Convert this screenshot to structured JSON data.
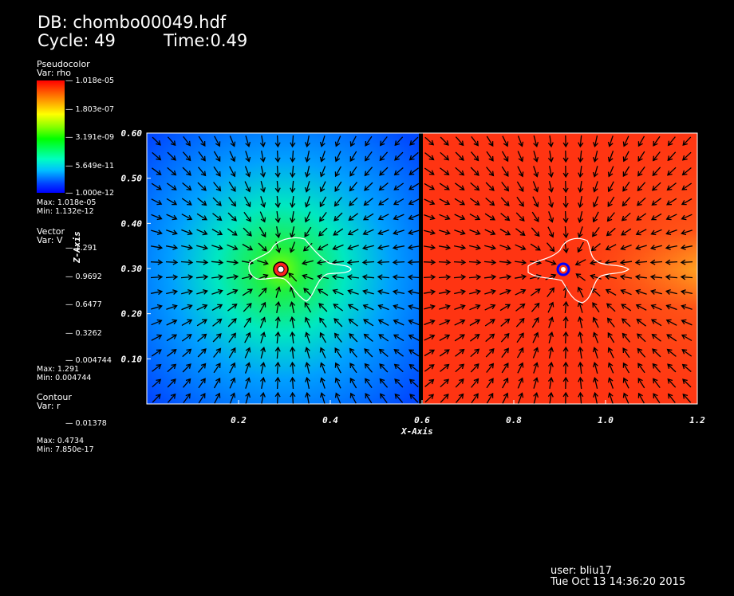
{
  "header": {
    "db": "DB: chombo00049.hdf",
    "cycle": "Cycle: 49",
    "time": "Time:0.49"
  },
  "pseudocolor": {
    "title": "Pseudocolor",
    "var": "Var: rho",
    "labels": [
      "1.018e-05",
      "1.803e-07",
      "3.191e-09",
      "5.649e-11",
      "1.000e-12"
    ],
    "max": "Max:  1.018e-05",
    "min": "Min:  1.132e-12"
  },
  "vector": {
    "title": "Vector",
    "var": "Var: V",
    "labels": [
      "1.291",
      "0.9692",
      "0.6477",
      "0.3262",
      "0.004744"
    ],
    "max": "Max:  1.291",
    "min": "Min:  0.004744"
  },
  "contour": {
    "title": "Contour",
    "var": "Var: r",
    "labels": [
      "0.01378"
    ],
    "max": "Max:  0.4734",
    "min": "Min:  7.850e-17"
  },
  "plot": {
    "x_axis_label": "X-Axis",
    "z_axis_label": "Z-Axis",
    "x_ticks": [
      "0.2",
      "0.4",
      "0.6",
      "0.8",
      "1.0",
      "1.2"
    ],
    "z_ticks": [
      "0.60",
      "0.50",
      "0.40",
      "0.30",
      "0.20",
      "0.10"
    ],
    "x_tick_values": [
      0.2,
      0.4,
      0.6,
      0.8,
      1.0,
      1.2
    ],
    "z_tick_values": [
      0.6,
      0.5,
      0.4,
      0.3,
      0.2,
      0.1
    ],
    "x_range": [
      0.0,
      1.2
    ],
    "z_range": [
      0.0,
      0.6
    ],
    "split_x": 0.6,
    "left_blob": {
      "cx": 0.3,
      "cz": 0.3
    },
    "right_blob": {
      "cx": 0.92,
      "cz": 0.3
    },
    "colors": {
      "left_base": "#0048ff",
      "right_base": "#ff3010",
      "contour": "#ffffff"
    }
  },
  "footer": {
    "user": "user: bliu17",
    "date": "Tue Oct 13 14:36:20 2015"
  }
}
